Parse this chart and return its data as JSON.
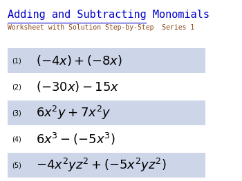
{
  "title": "Adding and Subtracting Monomials",
  "subtitle": "Worksheet with Solution Step-by-Step  Series 1",
  "title_color": "#0000cc",
  "subtitle_color": "#8b4513",
  "title_fontsize": 11,
  "subtitle_fontsize": 7,
  "background_color": "#ffffff",
  "row_bg_shaded": "#cdd5e8",
  "problems": [
    {
      "num": "(1)",
      "expr": "$(-4x) + (-8x)$",
      "shaded": true
    },
    {
      "num": "(2)",
      "expr": "$(-30x) - 15x$",
      "shaded": false
    },
    {
      "num": "(3)",
      "expr": "$6x^2y + 7x^2y$",
      "shaded": true
    },
    {
      "num": "(4)",
      "expr": "$6x^3 - (-5x^3)$",
      "shaded": false
    },
    {
      "num": "(5)",
      "expr": "$-4x^2yz^2 + (-5x^2yz^2)$",
      "shaded": true
    }
  ],
  "num_fontsize": 7,
  "expr_fontsize": 13,
  "figsize": [
    3.5,
    2.63
  ],
  "dpi": 100
}
